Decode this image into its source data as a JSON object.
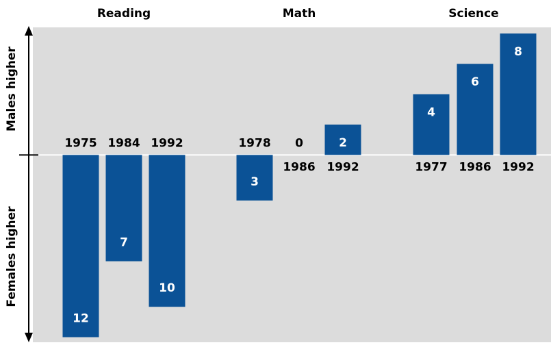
{
  "chart_data": {
    "type": "bar",
    "y_label_top": "Males higher",
    "y_label_bottom": "Females higher",
    "ylim": [
      -12.2,
      8.4
    ],
    "color": "#0b5296",
    "groups": [
      {
        "name": "Reading",
        "categories": [
          "1975",
          "1984",
          "1992"
        ],
        "values": [
          -12,
          -7,
          -10
        ],
        "value_labels": [
          "12",
          "7",
          "10"
        ]
      },
      {
        "name": "Math",
        "categories": [
          "1978",
          "1986",
          "1992"
        ],
        "values": [
          -3,
          0,
          2
        ],
        "value_labels": [
          "3",
          "0",
          "2"
        ]
      },
      {
        "name": "Science",
        "categories": [
          "1977",
          "1986",
          "1992"
        ],
        "values": [
          4,
          6,
          8
        ],
        "value_labels": [
          "4",
          "6",
          "8"
        ]
      }
    ]
  }
}
